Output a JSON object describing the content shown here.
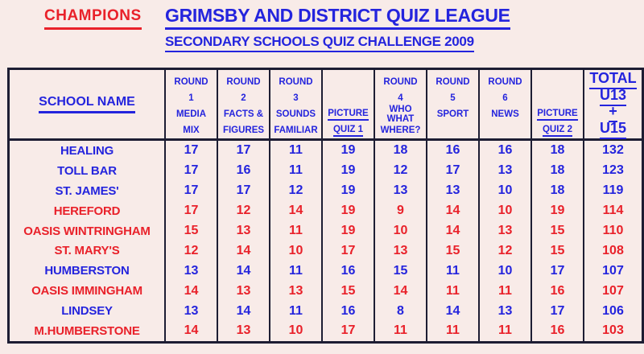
{
  "header": {
    "champions": "CHAMPIONS",
    "title": "GRIMSBY AND DISTRICT QUIZ LEAGUE",
    "subtitle": "SECONDARY SCHOOLS QUIZ CHALLENGE 2009"
  },
  "colors": {
    "blue": "#2424dd",
    "red": "#e9212a",
    "border": "#1d1d33",
    "background": "#f8ebe8"
  },
  "table": {
    "school_header": "SCHOOL NAME",
    "columns": [
      {
        "kind": "round",
        "round_label": "ROUND",
        "round_num": "1",
        "line1": "MEDIA",
        "line2": "MIX",
        "underline": false
      },
      {
        "kind": "round",
        "round_label": "ROUND",
        "round_num": "2",
        "line1": "FACTS &",
        "line2": "FIGURES",
        "underline": false
      },
      {
        "kind": "round",
        "round_label": "ROUND",
        "round_num": "3",
        "line1": "SOUNDS",
        "line2": "FAMILIAR",
        "underline": false
      },
      {
        "kind": "picture",
        "round_label": "",
        "round_num": "",
        "line1": "PICTURE",
        "line2": "QUIZ 1",
        "underline": true
      },
      {
        "kind": "round",
        "round_label": "ROUND",
        "round_num": "4",
        "line1": "WHO WHAT",
        "line2": "WHERE?",
        "underline": false
      },
      {
        "kind": "round",
        "round_label": "ROUND",
        "round_num": "5",
        "line1": "SPORT",
        "line2": "",
        "underline": false
      },
      {
        "kind": "round",
        "round_label": "ROUND",
        "round_num": "6",
        "line1": "NEWS",
        "line2": "",
        "underline": false
      },
      {
        "kind": "picture",
        "round_label": "",
        "round_num": "",
        "line1": "PICTURE",
        "line2": "QUIZ 2",
        "underline": true
      }
    ],
    "total_column": {
      "lines": [
        "TOTAL",
        "U13",
        "+",
        "U15"
      ]
    },
    "rows": [
      {
        "name": "HEALING",
        "color": "blue",
        "scores": [
          17,
          17,
          11,
          19,
          18,
          16,
          16,
          18
        ],
        "total": 132
      },
      {
        "name": "TOLL BAR",
        "color": "blue",
        "scores": [
          17,
          16,
          11,
          19,
          12,
          17,
          13,
          18
        ],
        "total": 123
      },
      {
        "name": "ST. JAMES'",
        "color": "blue",
        "scores": [
          17,
          17,
          12,
          19,
          13,
          13,
          10,
          18
        ],
        "total": 119
      },
      {
        "name": "HEREFORD",
        "color": "red",
        "scores": [
          17,
          12,
          14,
          19,
          9,
          14,
          10,
          19
        ],
        "total": 114
      },
      {
        "name": "OASIS WINTRINGHAM",
        "color": "red",
        "scores": [
          15,
          13,
          11,
          19,
          10,
          14,
          13,
          15
        ],
        "total": 110
      },
      {
        "name": "ST. MARY'S",
        "color": "red",
        "scores": [
          12,
          14,
          10,
          17,
          13,
          15,
          12,
          15
        ],
        "total": 108
      },
      {
        "name": "HUMBERSTON",
        "color": "blue",
        "scores": [
          13,
          14,
          11,
          16,
          15,
          11,
          10,
          17
        ],
        "total": 107
      },
      {
        "name": "OASIS IMMINGHAM",
        "color": "red",
        "scores": [
          14,
          13,
          13,
          15,
          14,
          11,
          11,
          16
        ],
        "total": 107
      },
      {
        "name": "LINDSEY",
        "color": "blue",
        "scores": [
          13,
          14,
          11,
          16,
          8,
          14,
          13,
          17
        ],
        "total": 106
      },
      {
        "name": "M.HUMBERSTONE",
        "color": "red",
        "scores": [
          14,
          13,
          10,
          17,
          11,
          11,
          11,
          16
        ],
        "total": 103
      }
    ]
  }
}
